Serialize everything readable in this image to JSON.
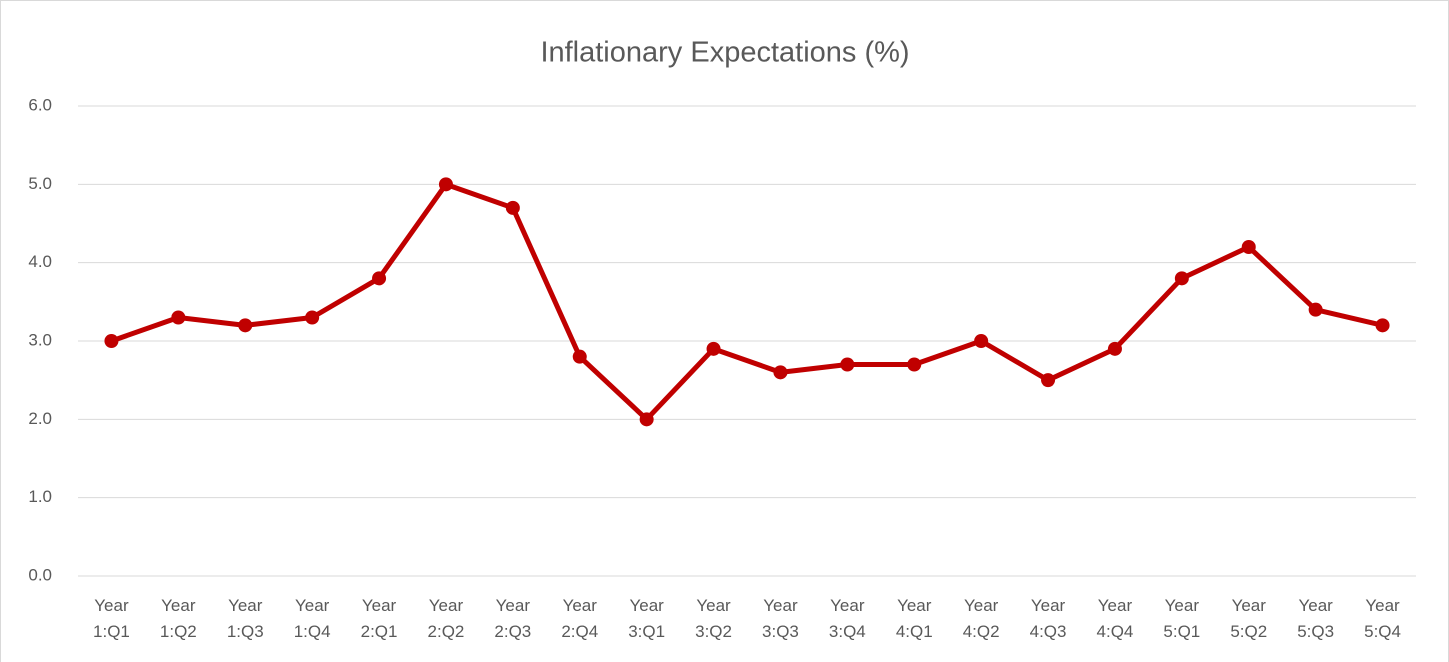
{
  "chart_data": {
    "type": "line",
    "title": "Inflationary Expectations (%)",
    "categories": [
      "Year 1:Q1",
      "Year 1:Q2",
      "Year 1:Q3",
      "Year 1:Q4",
      "Year 2:Q1",
      "Year 2:Q2",
      "Year 2:Q3",
      "Year 2:Q4",
      "Year 3:Q1",
      "Year 3:Q2",
      "Year 3:Q3",
      "Year 3:Q4",
      "Year 4:Q1",
      "Year 4:Q2",
      "Year 4:Q3",
      "Year 4:Q4",
      "Year 5:Q1",
      "Year 5:Q2",
      "Year 5:Q3",
      "Year 5:Q4"
    ],
    "values": [
      3.0,
      3.3,
      3.2,
      3.3,
      3.8,
      5.0,
      4.7,
      2.8,
      2.0,
      2.9,
      2.6,
      2.7,
      2.7,
      3.0,
      2.5,
      2.9,
      3.8,
      4.2,
      3.4,
      3.2
    ],
    "color": "#c00000",
    "ylim": [
      0,
      6
    ],
    "yticks": [
      {
        "value": 0,
        "label": "0.0"
      },
      {
        "value": 1,
        "label": "1.0"
      },
      {
        "value": 2,
        "label": "2.0"
      },
      {
        "value": 3,
        "label": "3.0"
      },
      {
        "value": 4,
        "label": "4.0"
      },
      {
        "value": 5,
        "label": "5.0"
      },
      {
        "value": 6,
        "label": "6.0"
      }
    ],
    "grid": true
  }
}
